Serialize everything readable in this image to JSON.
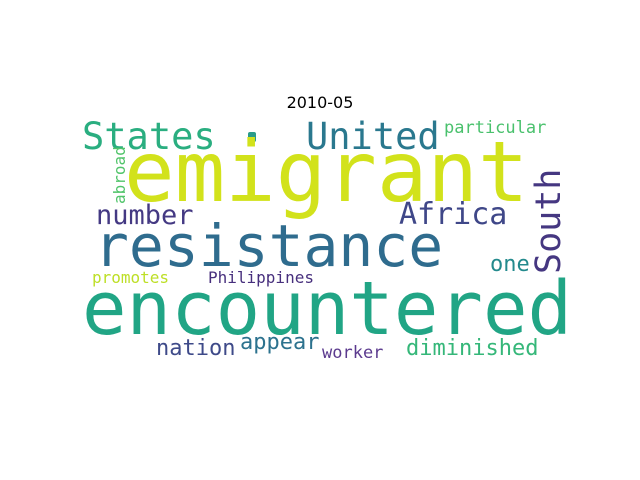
{
  "title": "2010-05",
  "words": {
    "emigrant": {
      "text": "emigrant",
      "color": "#d2e21b"
    },
    "encountered": {
      "text": "encountered",
      "color": "#21a585"
    },
    "resistance": {
      "text": "resistance",
      "color": "#2f6c8e"
    },
    "states": {
      "text": "States",
      "color": "#2aae80"
    },
    "united": {
      "text": "United",
      "color": "#2a788e"
    },
    "number": {
      "text": "number",
      "color": "#443983"
    },
    "africa": {
      "text": "Africa",
      "color": "#3f4788"
    },
    "south": {
      "text": "South",
      "color": "#453781"
    },
    "particular": {
      "text": "particular",
      "color": "#4ac16d"
    },
    "abroad": {
      "text": "abroad",
      "color": "#50c46a"
    },
    "one": {
      "text": "one",
      "color": "#238a8d"
    },
    "promotes": {
      "text": "promotes",
      "color": "#bddf26"
    },
    "philippines": {
      "text": "Philippines",
      "color": "#472f7d"
    },
    "nation": {
      "text": "nation",
      "color": "#3e4a89"
    },
    "appear": {
      "text": "appear",
      "color": "#2c728e"
    },
    "worker": {
      "text": "worker",
      "color": "#5b3a8e"
    },
    "diminished": {
      "text": "diminished",
      "color": "#35b779"
    }
  },
  "accent_dot": {
    "color": "#2a9b8a"
  }
}
